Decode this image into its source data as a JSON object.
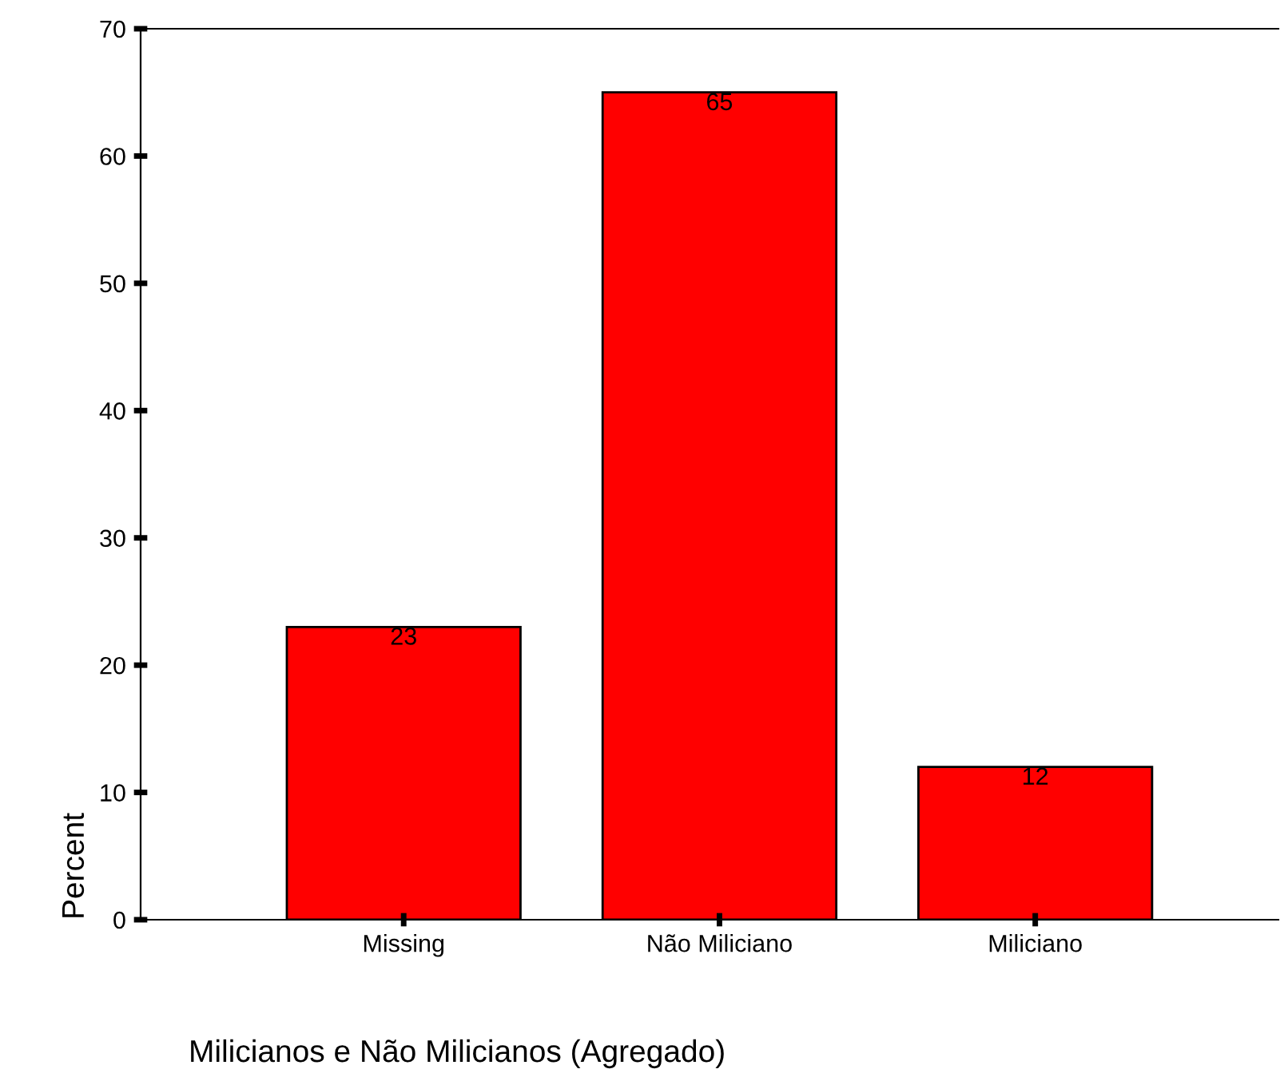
{
  "chart_data": {
    "type": "bar",
    "xlabel": "Milicianos e Não Milicianos (Agregado)",
    "ylabel": "Percent",
    "categories": [
      "Missing",
      "Não Miliciano",
      "Miliciano"
    ],
    "values": [
      23,
      65,
      12
    ],
    "color": "#ff0000",
    "ylim": [
      0,
      70
    ],
    "yticks": [
      0,
      10,
      20,
      30,
      40,
      50,
      60,
      70
    ],
    "data_labels": true,
    "grid": false,
    "legend": false
  }
}
